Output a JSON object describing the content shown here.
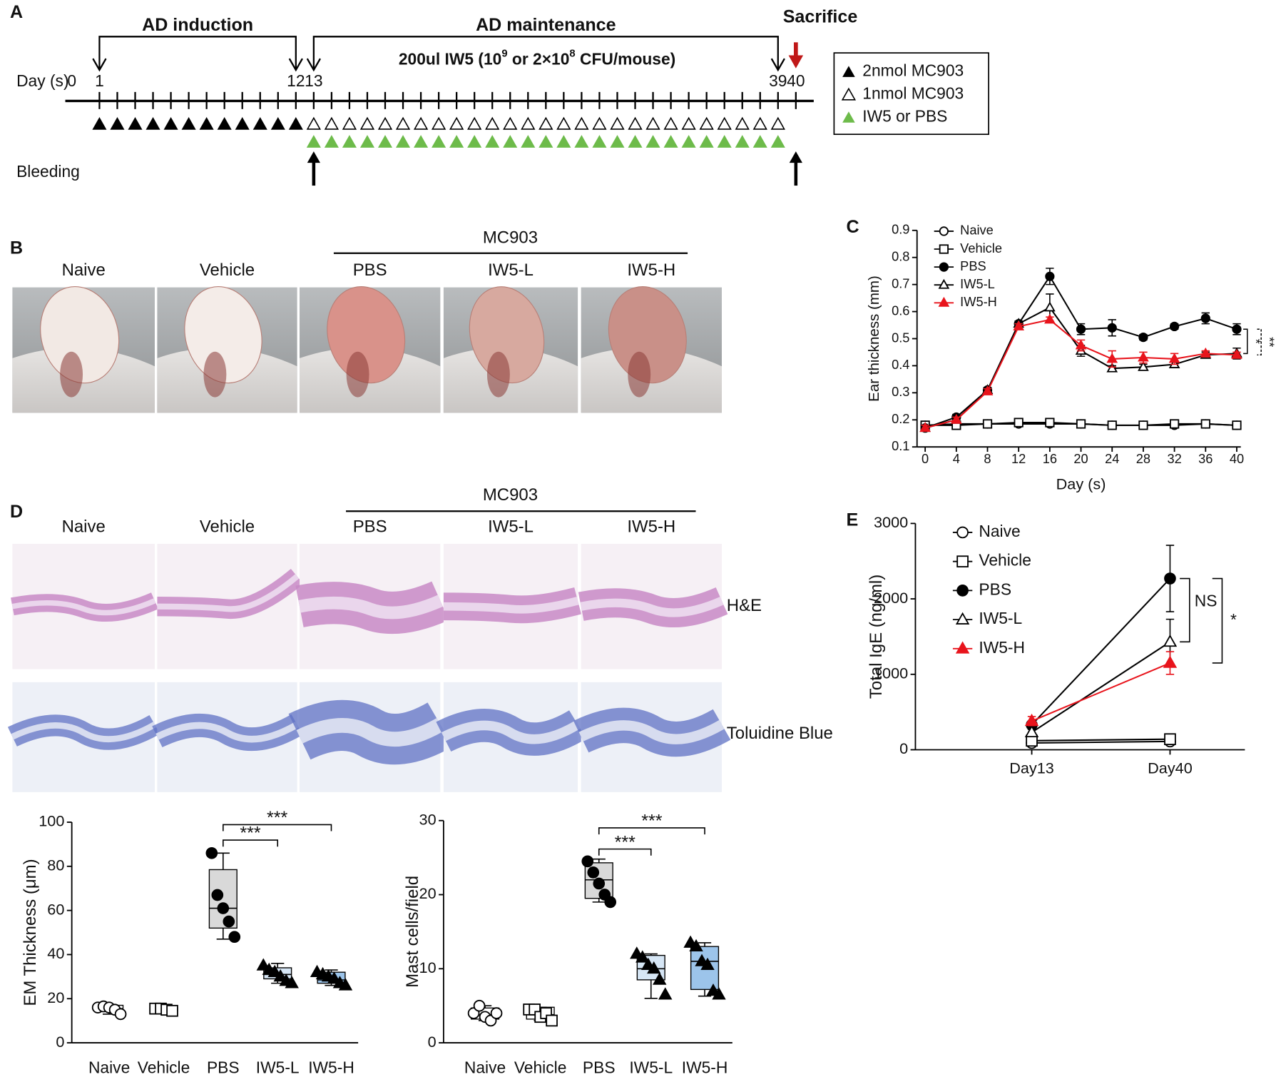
{
  "panel_labels": [
    "A",
    "B",
    "C",
    "D",
    "E"
  ],
  "timeline": {
    "induction": "AD induction",
    "maintenance": "AD maintenance",
    "dose": [
      "200ul  IW5 (10",
      "9",
      " or 2×10",
      "8",
      " CFU/mouse)"
    ],
    "sacrifice": "Sacrifice",
    "day_label": "Day (s)",
    "days": [
      0,
      1,
      12,
      13,
      39,
      40
    ],
    "bleeding": "Bleeding",
    "legend": [
      "2nmol MC903",
      "1nmol MC903",
      "IW5 or PBS"
    ]
  },
  "photos": {
    "group": "MC903",
    "labels": [
      "Naive",
      "Vehicle",
      "PBS",
      "IW5-L",
      "IW5-H"
    ]
  },
  "histology": {
    "group": "MC903",
    "labels": [
      "Naive",
      "Vehicle",
      "PBS",
      "IW5-L",
      "IW5-H"
    ],
    "stains": [
      "H&E",
      "Toluidine Blue"
    ]
  },
  "chart_data": [
    {
      "type": "line",
      "x_label": "Day (s)",
      "y_label": "Ear thickness (mm)",
      "x": [
        0,
        4,
        8,
        12,
        16,
        20,
        24,
        28,
        32,
        36,
        40
      ],
      "xlim": [
        0,
        40
      ],
      "xticks": [
        0,
        4,
        8,
        12,
        16,
        20,
        24,
        28,
        32,
        36,
        40
      ],
      "ylim": [
        0.1,
        0.9
      ],
      "yticks": [
        0.1,
        0.2,
        0.3,
        0.4,
        0.5,
        0.6,
        0.7,
        0.8,
        0.9
      ],
      "series": [
        {
          "name": "Naive",
          "color": "#000000",
          "marker": "circle-open",
          "values": [
            0.18,
            0.185,
            0.185,
            0.185,
            0.185,
            0.185,
            0.18,
            0.18,
            0.18,
            0.185,
            0.18
          ]
        },
        {
          "name": "Vehicle",
          "color": "#000000",
          "marker": "square-open",
          "values": [
            0.18,
            0.18,
            0.185,
            0.19,
            0.19,
            0.185,
            0.18,
            0.18,
            0.185,
            0.185,
            0.18
          ]
        },
        {
          "name": "PBS",
          "color": "#000000",
          "marker": "circle-filled",
          "values": [
            0.17,
            0.21,
            0.31,
            0.555,
            0.73,
            0.535,
            0.54,
            0.505,
            0.545,
            0.575,
            0.535
          ],
          "errors": [
            0.01,
            0.01,
            0.01,
            0.01,
            0.03,
            0.02,
            0.03,
            0.01,
            0.01,
            0.02,
            0.02
          ]
        },
        {
          "name": "IW5-L",
          "color": "#000000",
          "marker": "triangle-open",
          "values": [
            0.17,
            0.2,
            0.31,
            0.555,
            0.615,
            0.455,
            0.39,
            0.395,
            0.405,
            0.44,
            0.445
          ],
          "errors": [
            0.01,
            0.01,
            0.01,
            0.01,
            0.05,
            0.02,
            0.01,
            0.01,
            0.01,
            0.01,
            0.02
          ]
        },
        {
          "name": "IW5-H",
          "color": "#e8141c",
          "marker": "triangle-filled",
          "values": [
            0.17,
            0.2,
            0.305,
            0.545,
            0.57,
            0.475,
            0.425,
            0.43,
            0.425,
            0.445,
            0.44
          ],
          "errors": [
            0.01,
            0.01,
            0.01,
            0.01,
            0.01,
            0.02,
            0.03,
            0.02,
            0.02,
            0.01,
            0.01
          ]
        }
      ],
      "annotations": [
        "*",
        "**"
      ]
    },
    {
      "type": "line",
      "y_label": "Total IgE (ng/ml)",
      "categories": [
        "Day13",
        "Day40"
      ],
      "ylim": [
        0,
        3000
      ],
      "yticks": [
        0,
        1000,
        2000,
        3000
      ],
      "series": [
        {
          "name": "Naive",
          "color": "#000000",
          "marker": "circle-open",
          "values": [
            90,
            110
          ]
        },
        {
          "name": "Vehicle",
          "color": "#000000",
          "marker": "square-open",
          "values": [
            120,
            140
          ]
        },
        {
          "name": "PBS",
          "color": "#000000",
          "marker": "circle-filled",
          "values": [
            330,
            2270
          ],
          "errors": [
            50,
            440
          ]
        },
        {
          "name": "IW5-L",
          "color": "#000000",
          "marker": "triangle-open",
          "values": [
            230,
            1430
          ],
          "errors": [
            40,
            300
          ]
        },
        {
          "name": "IW5-H",
          "color": "#e8141c",
          "marker": "triangle-filled",
          "values": [
            380,
            1150
          ],
          "errors": [
            60,
            150
          ]
        }
      ],
      "annotations": [
        "NS",
        "*"
      ]
    },
    {
      "type": "box",
      "y_label": "EM Thickness (μm)",
      "categories": [
        "Naive",
        "Vehicle",
        "PBS",
        "IW5-L",
        "IW5-H"
      ],
      "ylim": [
        0,
        100
      ],
      "yticks": [
        0,
        20,
        40,
        60,
        80,
        100
      ],
      "boxes": [
        {
          "color": "#ffffff",
          "marker": "circle-open",
          "min": 13,
          "q1": 14.5,
          "median": 15.5,
          "q3": 17,
          "max": 17,
          "points": [
            16,
            16.5,
            16,
            15,
            13
          ]
        },
        {
          "color": "#ffffff",
          "marker": "square-open",
          "min": 14.5,
          "q1": 14.5,
          "median": 15,
          "q3": 15.8,
          "max": 15.8,
          "points": [
            15.5,
            15.5,
            15,
            14.5
          ]
        },
        {
          "color": "#d9d9d9",
          "marker": "circle-filled",
          "min": 47,
          "q1": 52,
          "median": 61,
          "q3": 78.5,
          "max": 86,
          "points": [
            86,
            67,
            61,
            55,
            48
          ]
        },
        {
          "color": "#d6e6f5",
          "marker": "triangle-filled",
          "min": 27,
          "q1": 29,
          "median": 31,
          "q3": 34,
          "max": 36,
          "points": [
            35,
            33,
            32,
            30,
            28,
            27
          ]
        },
        {
          "color": "#9cc4ea",
          "marker": "triangle-filled",
          "min": 26,
          "q1": 27,
          "median": 28.5,
          "q3": 32,
          "max": 33,
          "points": [
            32,
            31,
            30,
            29,
            27,
            26
          ]
        }
      ],
      "annotations": [
        "***",
        "***"
      ]
    },
    {
      "type": "box",
      "y_label": "Mast cells/field",
      "categories": [
        "Naive",
        "Vehicle",
        "PBS",
        "IW5-L",
        "IW5-H"
      ],
      "ylim": [
        0,
        30
      ],
      "yticks": [
        0,
        10,
        20,
        30
      ],
      "boxes": [
        {
          "color": "#ffffff",
          "marker": "circle-open",
          "min": 3,
          "q1": 3.2,
          "median": 3.8,
          "q3": 4.7,
          "max": 5,
          "points": [
            4,
            5,
            3.5,
            3,
            4
          ]
        },
        {
          "color": "#ffffff",
          "marker": "square-open",
          "min": 3,
          "q1": 3.2,
          "median": 3.8,
          "q3": 4.8,
          "max": 4.8,
          "points": [
            4.5,
            4.5,
            3.5,
            4,
            3
          ]
        },
        {
          "color": "#d9d9d9",
          "marker": "circle-filled",
          "min": 19,
          "q1": 19.5,
          "median": 22,
          "q3": 24.3,
          "max": 24.8,
          "points": [
            24.5,
            23,
            21.5,
            20,
            19
          ]
        },
        {
          "color": "#d6e6f5",
          "marker": "triangle-filled",
          "min": 6,
          "q1": 8.5,
          "median": 10,
          "q3": 11.8,
          "max": 12,
          "points": [
            12,
            11.5,
            10.5,
            10,
            8.5,
            6.5
          ]
        },
        {
          "color": "#9cc4ea",
          "marker": "triangle-filled",
          "min": 6.3,
          "q1": 7.2,
          "median": 11,
          "q3": 13,
          "max": 13.5,
          "points": [
            13.5,
            13,
            11,
            10.5,
            7,
            6.5
          ]
        }
      ],
      "annotations": [
        "***",
        "***"
      ]
    }
  ]
}
